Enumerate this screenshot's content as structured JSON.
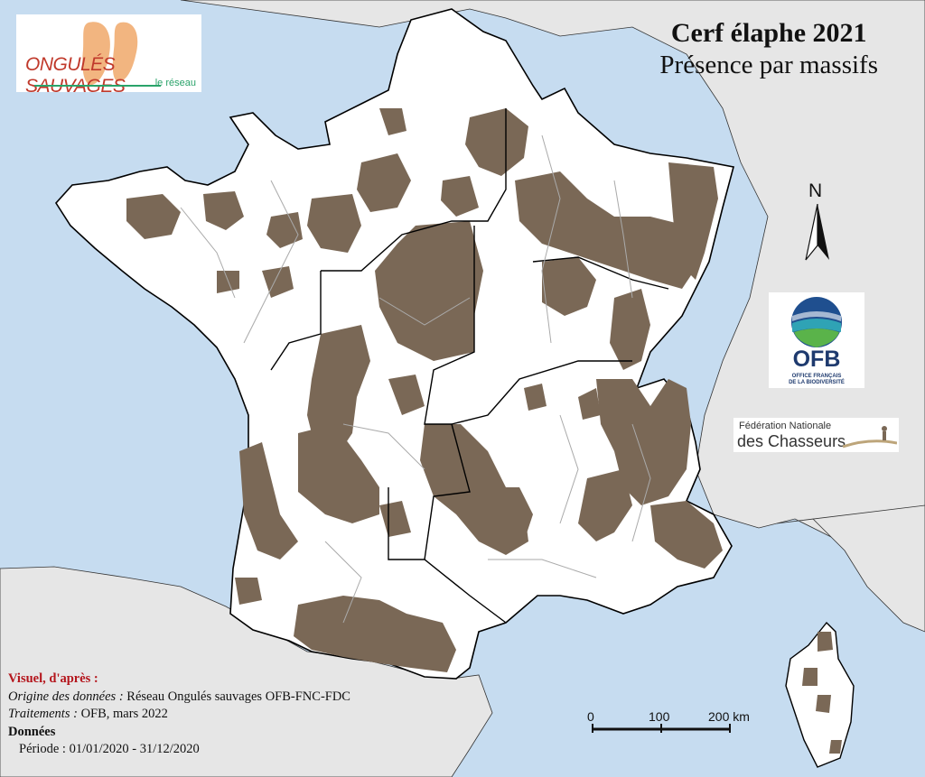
{
  "map": {
    "title": "Cerf élaphe 2021",
    "subtitle": "Présence par massifs",
    "north_label": "N",
    "colors": {
      "sea": "#c6dcf0",
      "land_outside": "#e6e6e6",
      "france": "#ffffff",
      "presence": "#7a6856",
      "borders_region": "#000000",
      "borders_dept": "#aaaaaa"
    },
    "icons": [
      "north-arrow-icon",
      "ongules-logo-icon",
      "ofb-logo-icon",
      "fnc-logo-icon"
    ]
  },
  "logos": {
    "ongules_main": "ONGULÉS SAUVAGES",
    "ongules_sub": "le réseau",
    "ofb_name": "OFB",
    "ofb_line1": "OFFICE FRANÇAIS",
    "ofb_line2": "DE LA BIODIVERSITÉ",
    "fnc_line1": "Fédération Nationale",
    "fnc_line2": "des Chasseurs"
  },
  "legend": {
    "visual_label": "Visuel, d'après :",
    "origin_label": "Origine des données :",
    "origin_value": " Réseau Ongulés sauvages OFB-FNC-FDC",
    "treatment_label": "Traitements :",
    "treatment_value": " OFB, mars 2022",
    "data_label": "Données",
    "period": "Période : 01/01/2020 - 31/12/2020"
  },
  "scale": {
    "ticks": [
      "0",
      "100",
      "200 km"
    ]
  }
}
